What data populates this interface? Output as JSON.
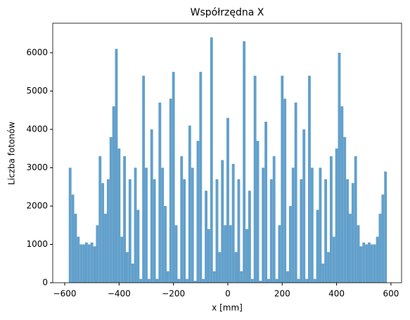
{
  "chart_data": {
    "type": "histogram",
    "title": "Współrzędna X",
    "xlabel": "x [mm]",
    "ylabel": "Liczba fotonów",
    "color": "#62a0cb",
    "bins": [
      -585,
      -575,
      -565,
      -555,
      -545,
      -535,
      -525,
      -515,
      -505,
      -495,
      -485,
      -475,
      -465,
      -455,
      -445,
      -435,
      -425,
      -415,
      -405,
      -395,
      -385,
      -375,
      -365,
      -355,
      -345,
      -335,
      -325,
      -315,
      -305,
      -295,
      -285,
      -275,
      -265,
      -255,
      -245,
      -235,
      -225,
      -215,
      -205,
      -195,
      -185,
      -175,
      -165,
      -155,
      -145,
      -135,
      -125,
      -115,
      -105,
      -95,
      -85,
      -75,
      -65,
      -55,
      -45,
      -35,
      -25,
      -15,
      -5,
      5,
      15,
      25,
      35,
      45,
      55,
      65,
      75,
      85,
      95,
      105,
      115,
      125,
      135,
      145,
      155,
      165,
      175,
      185,
      195,
      205,
      215,
      225,
      235,
      245,
      255,
      265,
      275,
      285,
      295,
      305,
      315,
      325,
      335,
      345,
      355,
      365,
      375,
      385,
      395,
      405,
      415,
      425,
      435,
      445,
      455,
      465,
      475,
      485,
      495,
      505,
      515,
      525,
      535,
      545,
      555,
      565,
      575,
      585
    ],
    "values": [
      3000,
      2300,
      1800,
      1200,
      1000,
      1000,
      1050,
      1000,
      1050,
      950,
      1500,
      3300,
      2600,
      1800,
      2700,
      3800,
      4600,
      6100,
      3500,
      1200,
      3300,
      800,
      2700,
      500,
      3000,
      1900,
      100,
      5400,
      3000,
      100,
      4000,
      2700,
      100,
      4700,
      3000,
      2000,
      300,
      4800,
      5500,
      1500,
      100,
      3300,
      2700,
      100,
      4100,
      3000,
      50,
      3700,
      5500,
      100,
      2400,
      1400,
      6400,
      300,
      2700,
      800,
      3200,
      1500,
      4300,
      1500,
      3100,
      800,
      2700,
      300,
      6300,
      1400,
      2400,
      100,
      5400,
      3700,
      50,
      3000,
      4200,
      100,
      2700,
      3300,
      100,
      1500,
      5400,
      4800,
      300,
      2000,
      3000,
      4700,
      100,
      2700,
      4000,
      100,
      5400,
      3000,
      100,
      1900,
      3000,
      500,
      2700,
      800,
      3300,
      1200,
      3500,
      6000,
      4600,
      3800,
      2700,
      1800,
      2600,
      3300,
      1500,
      950,
      1050,
      1000,
      1050,
      1000,
      1000,
      1200,
      1800,
      2300,
      2900
    ],
    "xlim": [
      -644,
      639
    ],
    "ylim": [
      0,
      6770
    ],
    "xticks": [
      {
        "value": -600,
        "label": "−600"
      },
      {
        "value": -400,
        "label": "−400"
      },
      {
        "value": -200,
        "label": "−200"
      },
      0,
      200,
      400,
      600
    ],
    "yticks": [
      0,
      1000,
      2000,
      3000,
      4000,
      5000,
      6000
    ]
  }
}
